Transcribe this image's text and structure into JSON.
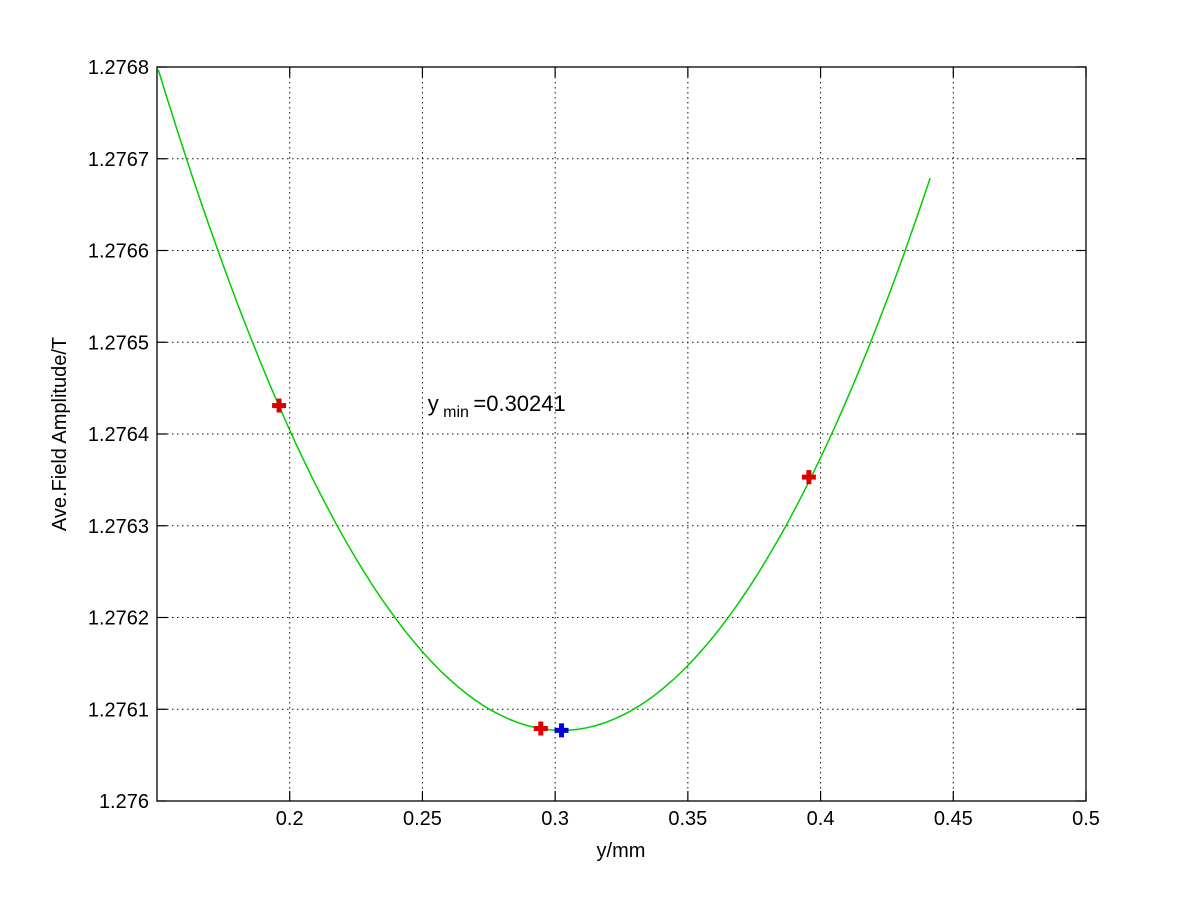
{
  "figure": {
    "background": "#ffffff"
  },
  "chart_data": {
    "type": "line",
    "title": "",
    "xlabel": "y/mm",
    "ylabel": "Ave.Field Amplitude/T",
    "xlim": [
      0.15,
      0.5
    ],
    "ylim": [
      1.276,
      1.2768
    ],
    "grid": "dotted",
    "legend": "none",
    "x_ticks": {
      "values": [
        0.2,
        0.25,
        0.3,
        0.35,
        0.4,
        0.45,
        0.5
      ],
      "labels": [
        "0.2",
        "0.25",
        "0.3",
        "0.35",
        "0.4",
        "0.45",
        "0.5"
      ]
    },
    "y_ticks": {
      "values": [
        1.276,
        1.2761,
        1.2762,
        1.2763,
        1.2764,
        1.2765,
        1.2766,
        1.2767,
        1.2768
      ],
      "labels": [
        "1.276",
        "1.2761",
        "1.2762",
        "1.2763",
        "1.2764",
        "1.2765",
        "1.2766",
        "1.2767",
        "1.2768"
      ]
    },
    "series": [
      {
        "name": "quadratic-fit-curve",
        "type": "curve",
        "color": "#00cc00",
        "quadratic": {
          "a": 0.0312,
          "x0": 0.30241,
          "y_min": 1.276077
        },
        "x_start": 0.1505,
        "x_end": 0.4413
      },
      {
        "name": "measured-points",
        "type": "scatter",
        "marker": "plus",
        "color": "#dd0000",
        "points": [
          [
            0.196,
            1.276431
          ],
          [
            0.2946,
            1.276079
          ],
          [
            0.3956,
            1.276353
          ]
        ]
      },
      {
        "name": "fitted-minimum-point",
        "type": "scatter",
        "marker": "plus",
        "color": "#0000dd",
        "points": [
          [
            0.30241,
            1.276077
          ]
        ]
      }
    ],
    "annotation": {
      "text_main": "y",
      "text_sub": "min",
      "text_value": "=0.30241",
      "x": 0.252,
      "y": 1.276425
    }
  }
}
